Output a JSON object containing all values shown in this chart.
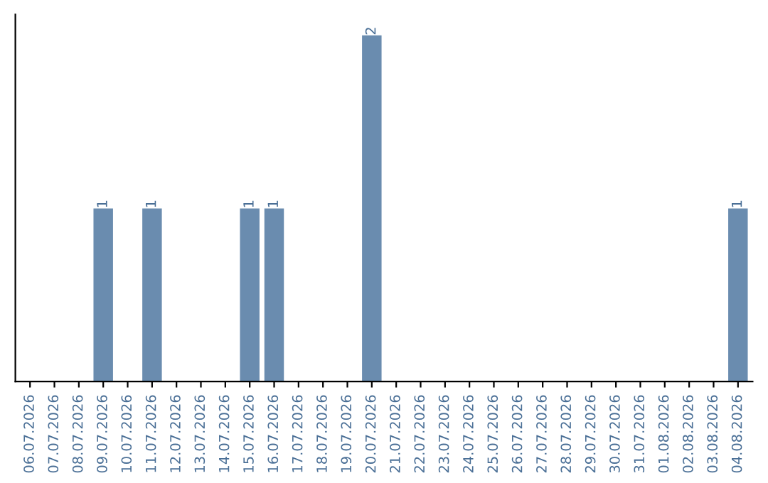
{
  "chart_data": {
    "type": "bar",
    "categories": [
      "06.07.2026",
      "07.07.2026",
      "08.07.2026",
      "09.07.2026",
      "10.07.2026",
      "11.07.2026",
      "12.07.2026",
      "13.07.2026",
      "14.07.2026",
      "15.07.2026",
      "16.07.2026",
      "17.07.2026",
      "18.07.2026",
      "19.07.2026",
      "20.07.2026",
      "21.07.2026",
      "22.07.2026",
      "23.07.2026",
      "24.07.2026",
      "25.07.2026",
      "26.07.2026",
      "27.07.2026",
      "28.07.2026",
      "29.07.2026",
      "30.07.2026",
      "31.07.2026",
      "01.08.2026",
      "02.08.2026",
      "03.08.2026",
      "04.08.2026"
    ],
    "values": [
      0,
      0,
      0,
      1,
      0,
      1,
      0,
      0,
      0,
      1,
      1,
      0,
      0,
      0,
      2,
      0,
      0,
      0,
      0,
      0,
      0,
      0,
      0,
      0,
      0,
      0,
      0,
      0,
      0,
      1
    ],
    "value_labels": [
      null,
      null,
      null,
      "1",
      null,
      "1",
      null,
      null,
      null,
      "1",
      "1",
      null,
      null,
      null,
      "2",
      null,
      null,
      null,
      null,
      null,
      null,
      null,
      null,
      null,
      null,
      null,
      null,
      null,
      null,
      "1"
    ],
    "color": "#6a8caf",
    "tick_labels": "x",
    "grid": false
  }
}
